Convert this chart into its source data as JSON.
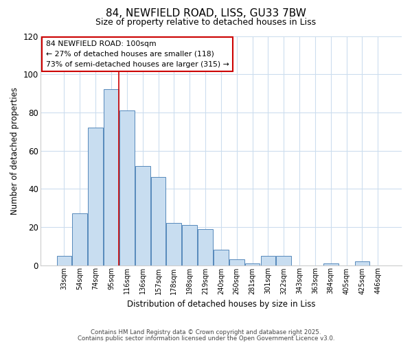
{
  "title_line1": "84, NEWFIELD ROAD, LISS, GU33 7BW",
  "title_line2": "Size of property relative to detached houses in Liss",
  "bar_labels": [
    "33sqm",
    "54sqm",
    "74sqm",
    "95sqm",
    "116sqm",
    "136sqm",
    "157sqm",
    "178sqm",
    "198sqm",
    "219sqm",
    "240sqm",
    "260sqm",
    "281sqm",
    "301sqm",
    "322sqm",
    "343sqm",
    "363sqm",
    "384sqm",
    "405sqm",
    "425sqm",
    "446sqm"
  ],
  "bar_values": [
    5,
    27,
    72,
    92,
    81,
    52,
    46,
    22,
    21,
    19,
    8,
    3,
    1,
    5,
    5,
    0,
    0,
    1,
    0,
    2,
    0
  ],
  "bar_color": "#c8ddf0",
  "bar_edge_color": "#5588bb",
  "vline_x": 3.5,
  "vline_color": "#cc0000",
  "ylabel": "Number of detached properties",
  "xlabel": "Distribution of detached houses by size in Liss",
  "ylim": [
    0,
    120
  ],
  "yticks": [
    0,
    20,
    40,
    60,
    80,
    100,
    120
  ],
  "annotation_title": "84 NEWFIELD ROAD: 100sqm",
  "annotation_line2": "← 27% of detached houses are smaller (118)",
  "annotation_line3": "73% of semi-detached houses are larger (315) →",
  "annotation_box_color": "#ffffff",
  "annotation_box_edge_color": "#cc0000",
  "footnote1": "Contains HM Land Registry data © Crown copyright and database right 2025.",
  "footnote2": "Contains public sector information licensed under the Open Government Licence v3.0.",
  "background_color": "#ffffff",
  "grid_color": "#ccddee"
}
